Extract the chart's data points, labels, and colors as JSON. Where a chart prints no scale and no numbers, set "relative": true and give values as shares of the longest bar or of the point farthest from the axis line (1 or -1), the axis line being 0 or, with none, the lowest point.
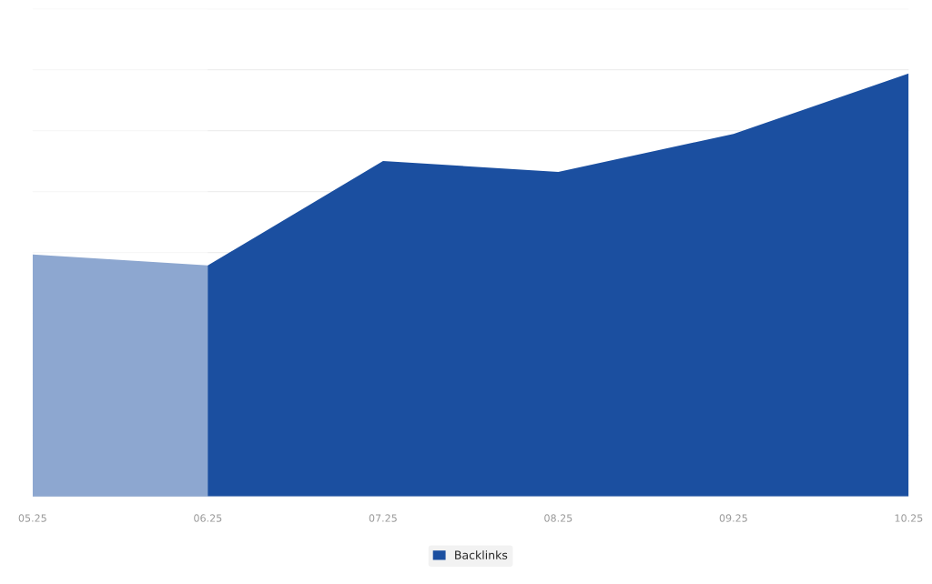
{
  "chart_data": {
    "type": "area",
    "relative": true,
    "categories": [
      "05.25",
      "06.25",
      "07.25",
      "08.25",
      "09.25",
      "10.25"
    ],
    "series": [
      {
        "name": "Backlinks",
        "color": "#1b4fa0",
        "values": [
          0.572,
          0.546,
          0.793,
          0.767,
          0.857,
          1
        ]
      }
    ],
    "bands": [
      {
        "axis": "x",
        "from": "05.25",
        "to": "06.25",
        "color": "#ffffff"
      }
    ],
    "grid": "y",
    "legend": "bottom"
  }
}
